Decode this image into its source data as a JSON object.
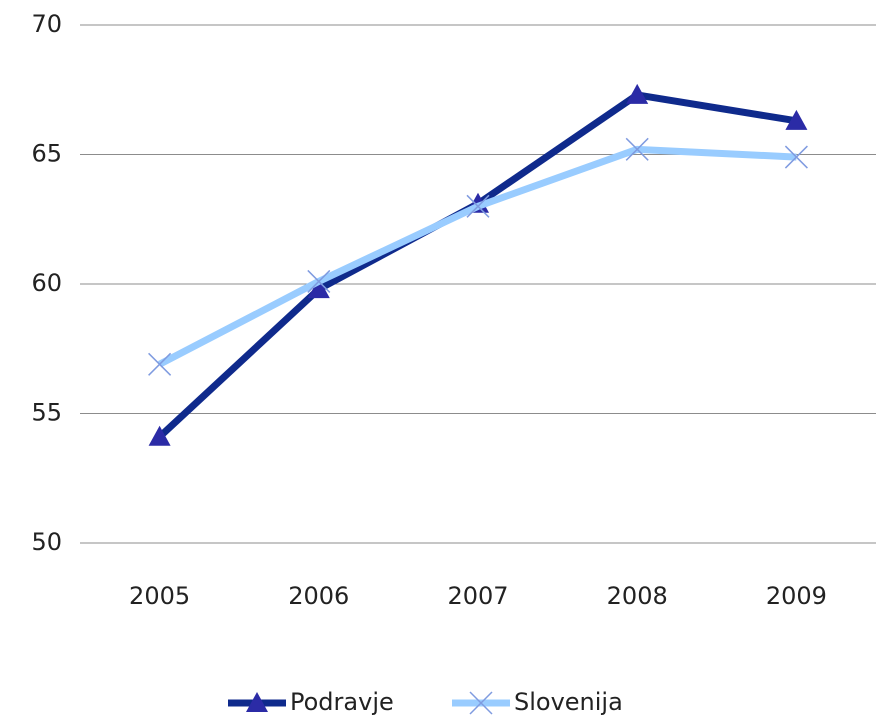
{
  "chart_data": {
    "type": "line",
    "categories": [
      "2005",
      "2006",
      "2007",
      "2008",
      "2009"
    ],
    "series": [
      {
        "name": "Podravje",
        "color": "#0f2a8c",
        "marker_color": "#2b2ba6",
        "marker": "triangle",
        "values": [
          54.1,
          59.8,
          63.1,
          67.3,
          66.3
        ]
      },
      {
        "name": "Slovenija",
        "color": "#99ccff",
        "marker_color": "#7f9be0",
        "marker": "x",
        "values": [
          56.9,
          60.1,
          63.0,
          65.2,
          64.9
        ]
      }
    ],
    "ylim": [
      50,
      70
    ],
    "yticks": [
      50,
      55,
      60,
      65,
      70
    ],
    "grid": true,
    "legend": "bottom"
  }
}
